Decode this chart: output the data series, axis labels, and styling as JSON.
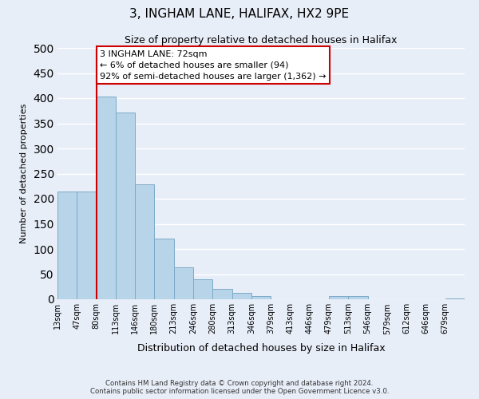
{
  "title": "3, INGHAM LANE, HALIFAX, HX2 9PE",
  "subtitle": "Size of property relative to detached houses in Halifax",
  "xlabel": "Distribution of detached houses by size in Halifax",
  "ylabel": "Number of detached properties",
  "bar_labels": [
    "13sqm",
    "47sqm",
    "80sqm",
    "113sqm",
    "146sqm",
    "180sqm",
    "213sqm",
    "246sqm",
    "280sqm",
    "313sqm",
    "346sqm",
    "379sqm",
    "413sqm",
    "446sqm",
    "479sqm",
    "513sqm",
    "546sqm",
    "579sqm",
    "612sqm",
    "646sqm",
    "679sqm"
  ],
  "bar_values": [
    215,
    215,
    403,
    372,
    228,
    120,
    63,
    40,
    20,
    13,
    7,
    0,
    0,
    0,
    6,
    6,
    0,
    0,
    0,
    0,
    2
  ],
  "bar_color": "#b8d4e8",
  "bar_edge_color": "#7aaac8",
  "vline_color": "#cc0000",
  "annotation_line1": "3 INGHAM LANE: 72sqm",
  "annotation_line2": "← 6% of detached houses are smaller (94)",
  "annotation_line3": "92% of semi-detached houses are larger (1,362) →",
  "annotation_box_color": "#ffffff",
  "annotation_box_edge": "#cc0000",
  "ylim": [
    0,
    500
  ],
  "yticks": [
    0,
    50,
    100,
    150,
    200,
    250,
    300,
    350,
    400,
    450,
    500
  ],
  "footer_line1": "Contains HM Land Registry data © Crown copyright and database right 2024.",
  "footer_line2": "Contains public sector information licensed under the Open Government Licence v3.0.",
  "background_color": "#e8eef8",
  "plot_bg_color": "#e8eef8",
  "grid_color": "#ffffff",
  "vline_x_index": 2
}
